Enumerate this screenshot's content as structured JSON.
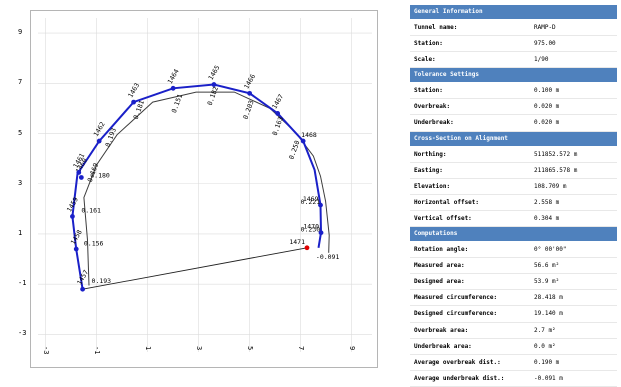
{
  "chart_data": {
    "type": "scatter",
    "title": "",
    "xlabel": "",
    "ylabel": "",
    "xlim": [
      -3.3,
      9.8
    ],
    "ylim": [
      -3.7,
      9.6
    ],
    "grid": true,
    "x_ticks": [
      "-3",
      "-1",
      "1",
      "3",
      "5",
      "7",
      "9"
    ],
    "y_ticks": [
      "9",
      "7",
      "5",
      "3",
      "1",
      "-1",
      "-3"
    ],
    "colors": {
      "profile": "#3d3d3d",
      "measured": "#1a20c8",
      "point": "#1a20c8",
      "closing_point": "#e00000",
      "grid": "#dcdcdc"
    },
    "invert_design_line": [
      [
        -1.3,
        -1.05
      ],
      [
        -1.36,
        0.75
      ],
      [
        -1.5,
        2.45
      ],
      [
        -1.0,
        3.75
      ],
      [
        -0.2,
        4.95
      ],
      [
        1.2,
        6.25
      ],
      [
        2.9,
        6.65
      ],
      [
        4.4,
        6.65
      ],
      [
        5.8,
        6.0
      ],
      [
        6.8,
        5.05
      ],
      [
        7.5,
        4.1
      ],
      [
        7.78,
        3.3
      ],
      [
        7.98,
        2.3
      ],
      [
        8.12,
        0.95
      ],
      [
        8.1,
        0.25
      ]
    ],
    "measured_profile": [
      [
        -1.55,
        -1.2
      ],
      [
        -1.8,
        0.4
      ],
      [
        -1.95,
        1.7
      ],
      [
        -1.75,
        3.4
      ],
      [
        -0.9,
        4.7
      ],
      [
        0.45,
        6.25
      ],
      [
        2.0,
        6.8
      ],
      [
        3.6,
        6.95
      ],
      [
        5.0,
        6.6
      ],
      [
        6.1,
        5.8
      ],
      [
        7.1,
        4.7
      ],
      [
        7.55,
        3.55
      ],
      [
        7.78,
        2.15
      ],
      [
        7.8,
        1.05
      ],
      [
        7.7,
        0.45
      ]
    ],
    "points": [
      {
        "label": "1457",
        "x": -1.55,
        "y": -1.2
      },
      {
        "label": "1458",
        "x": -1.8,
        "y": 0.4
      },
      {
        "label": "1459",
        "x": -1.95,
        "y": 1.7
      },
      {
        "label": "1460",
        "x": -1.6,
        "y": 3.25
      },
      {
        "label": "1461",
        "x": -1.7,
        "y": 3.45
      },
      {
        "label": "1462",
        "x": -0.9,
        "y": 4.7
      },
      {
        "label": "1463",
        "x": 0.45,
        "y": 6.25
      },
      {
        "label": "1464",
        "x": 2.0,
        "y": 6.8
      },
      {
        "label": "1465",
        "x": 3.6,
        "y": 6.95
      },
      {
        "label": "1466",
        "x": 5.0,
        "y": 6.6
      },
      {
        "label": "1467",
        "x": 6.1,
        "y": 5.8
      },
      {
        "label": "1468",
        "x": 7.1,
        "y": 4.7
      },
      {
        "label": "1469",
        "x": 7.78,
        "y": 2.15
      },
      {
        "label": "1470",
        "x": 7.8,
        "y": 1.05
      },
      {
        "label": "1471",
        "x": 7.25,
        "y": 0.45
      }
    ],
    "overbreak_labels": [
      {
        "text": "0.193",
        "x": -1.2,
        "y": -0.95
      },
      {
        "text": "0.156",
        "x": -1.5,
        "y": 0.55
      },
      {
        "text": "0.161",
        "x": -1.6,
        "y": 1.85
      },
      {
        "text": "0.180",
        "x": -1.25,
        "y": 3.25
      },
      {
        "text": "0.169",
        "x": -1.2,
        "y": 3.05
      },
      {
        "text": "0.193",
        "x": -0.5,
        "y": 4.45
      },
      {
        "text": "0.181",
        "x": 0.6,
        "y": 5.55
      },
      {
        "text": "0.151",
        "x": 2.1,
        "y": 5.8
      },
      {
        "text": "0.182",
        "x": 3.5,
        "y": 6.1
      },
      {
        "text": "0.203",
        "x": 4.9,
        "y": 5.55
      },
      {
        "text": "0.163",
        "x": 6.05,
        "y": 4.9
      },
      {
        "text": "0.250",
        "x": 6.7,
        "y": 3.95
      },
      {
        "text": "0.221",
        "x": 7.0,
        "y": 2.2
      },
      {
        "text": "0.230",
        "x": 7.0,
        "y": 1.1
      },
      {
        "text": "-0.091",
        "x": 7.6,
        "y": 0.0
      }
    ]
  },
  "panel": {
    "sections": [
      {
        "title": "General Information",
        "rows": [
          {
            "label": "Tunnel name:",
            "value": "RAMP-D"
          },
          {
            "label": "Station:",
            "value": "975.00"
          },
          {
            "label": "Scale:",
            "value": "1/90"
          }
        ]
      },
      {
        "title": "Tolerance Settings",
        "rows": [
          {
            "label": "Station:",
            "value": "0.100  m"
          },
          {
            "label": "Overbreak:",
            "value": "0.020  m"
          },
          {
            "label": "Underbreak:",
            "value": "0.020  m"
          }
        ]
      },
      {
        "title": "Cross-Section on Alignment",
        "rows": [
          {
            "label": "Northing:",
            "value": "511852.572  m"
          },
          {
            "label": "Easting:",
            "value": "211865.578 m"
          },
          {
            "label": "Elevation:",
            "value": "108.709  m"
          },
          {
            "label": "Horizontal offset:",
            "value": "2.558  m"
          },
          {
            "label": "Vertical offset:",
            "value": "0.304  m"
          }
        ]
      },
      {
        "title": "Computations",
        "rows": [
          {
            "label": "Rotation angle:",
            "value": "0° 00'00\""
          },
          {
            "label": "Measured area:",
            "value": "56.6  m²"
          },
          {
            "label": "Designed area:",
            "value": "53.9  m²"
          },
          {
            "label": "Measured circumference:",
            "value": "28.418  m"
          },
          {
            "label": "Designed circumference:",
            "value": "19.140  m"
          },
          {
            "label": "Overbreak area:",
            "value": "2.7  m²"
          },
          {
            "label": "Underbreak area:",
            "value": "0.0  m²"
          },
          {
            "label": "Average overbreak dist.:",
            "value": "0.190  m"
          },
          {
            "label": "Average underbreak dist.:",
            "value": "-0.091  m"
          }
        ]
      }
    ]
  }
}
